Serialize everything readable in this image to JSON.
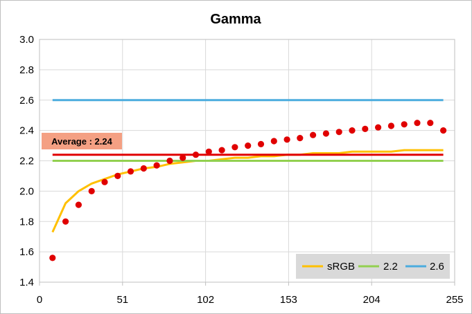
{
  "chart_data": {
    "type": "line",
    "title": "Gamma",
    "xlabel": "",
    "ylabel": "",
    "xlim": [
      0,
      255
    ],
    "ylim": [
      1.4,
      3.0
    ],
    "xticks": [
      "0",
      "51",
      "102",
      "153",
      "204",
      "255"
    ],
    "yticks": [
      "1.4",
      "1.6",
      "1.8",
      "2.0",
      "2.2",
      "2.4",
      "2.6",
      "2.8",
      "3.0"
    ],
    "grid": true,
    "legend_position": "bottom-right",
    "annotation": "Average : 2.24",
    "average_value": 2.24,
    "series": [
      {
        "name": "sRGB",
        "type": "line",
        "color": "#ffc000",
        "x": [
          8,
          16,
          24,
          32,
          40,
          48,
          56,
          64,
          72,
          80,
          88,
          96,
          104,
          112,
          120,
          128,
          136,
          144,
          152,
          160,
          168,
          176,
          184,
          192,
          200,
          208,
          216,
          224,
          232,
          240,
          248
        ],
        "values": [
          1.73,
          1.92,
          2.0,
          2.05,
          2.08,
          2.11,
          2.13,
          2.15,
          2.16,
          2.18,
          2.19,
          2.2,
          2.2,
          2.21,
          2.22,
          2.22,
          2.23,
          2.23,
          2.24,
          2.24,
          2.25,
          2.25,
          2.25,
          2.26,
          2.26,
          2.26,
          2.26,
          2.27,
          2.27,
          2.27,
          2.27
        ]
      },
      {
        "name": "2.2",
        "type": "line",
        "color": "#92d050",
        "x": [
          8,
          248
        ],
        "values": [
          2.2,
          2.2
        ]
      },
      {
        "name": "2.6",
        "type": "line",
        "color": "#4bacde",
        "x": [
          8,
          248
        ],
        "values": [
          2.6,
          2.6
        ]
      },
      {
        "name": "",
        "type": "line",
        "color": "#e00000",
        "x": [
          8,
          248
        ],
        "values": [
          2.24,
          2.24
        ]
      },
      {
        "name": "",
        "type": "scatter",
        "color": "#e00000",
        "x": [
          8,
          16,
          24,
          32,
          40,
          48,
          56,
          64,
          72,
          80,
          88,
          96,
          104,
          112,
          120,
          128,
          136,
          144,
          152,
          160,
          168,
          176,
          184,
          192,
          200,
          208,
          216,
          224,
          232,
          240,
          248
        ],
        "values": [
          1.56,
          1.8,
          1.91,
          2.0,
          2.06,
          2.1,
          2.13,
          2.15,
          2.17,
          2.2,
          2.22,
          2.24,
          2.26,
          2.27,
          2.29,
          2.3,
          2.31,
          2.33,
          2.34,
          2.35,
          2.37,
          2.38,
          2.39,
          2.4,
          2.41,
          2.42,
          2.43,
          2.44,
          2.45,
          2.45,
          2.4
        ]
      }
    ]
  }
}
